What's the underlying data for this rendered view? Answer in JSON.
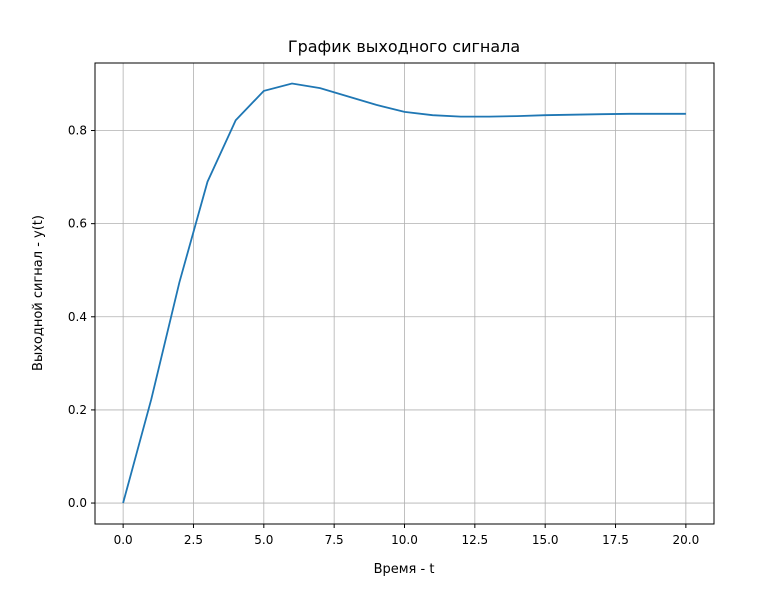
{
  "chart_data": {
    "type": "line",
    "title": "График выходного сигнала",
    "xlabel": "Время - t",
    "ylabel": "Выходной сигнал - y(t)",
    "xlim": [
      -1.0,
      21.0
    ],
    "ylim": [
      -0.045,
      0.945
    ],
    "grid": true,
    "xticks": [
      0.0,
      2.5,
      5.0,
      7.5,
      10.0,
      12.5,
      15.0,
      17.5,
      20.0
    ],
    "xtick_labels": [
      "0.0",
      "2.5",
      "5.0",
      "7.5",
      "10.0",
      "12.5",
      "15.0",
      "17.5",
      "20.0"
    ],
    "yticks": [
      0.0,
      0.2,
      0.4,
      0.6,
      0.8
    ],
    "ytick_labels": [
      "0.0",
      "0.2",
      "0.4",
      "0.6",
      "0.8"
    ],
    "series": [
      {
        "color": "#1f77b4",
        "x": [
          0,
          1,
          2,
          3,
          4,
          5,
          6,
          7,
          8,
          9,
          10,
          11,
          12,
          13,
          14,
          15,
          16,
          17,
          18,
          19,
          20
        ],
        "y": [
          0.0,
          0.223,
          0.474,
          0.69,
          0.822,
          0.885,
          0.901,
          0.891,
          0.873,
          0.855,
          0.84,
          0.833,
          0.83,
          0.83,
          0.831,
          0.833,
          0.834,
          0.835,
          0.836,
          0.836,
          0.836
        ]
      }
    ]
  }
}
